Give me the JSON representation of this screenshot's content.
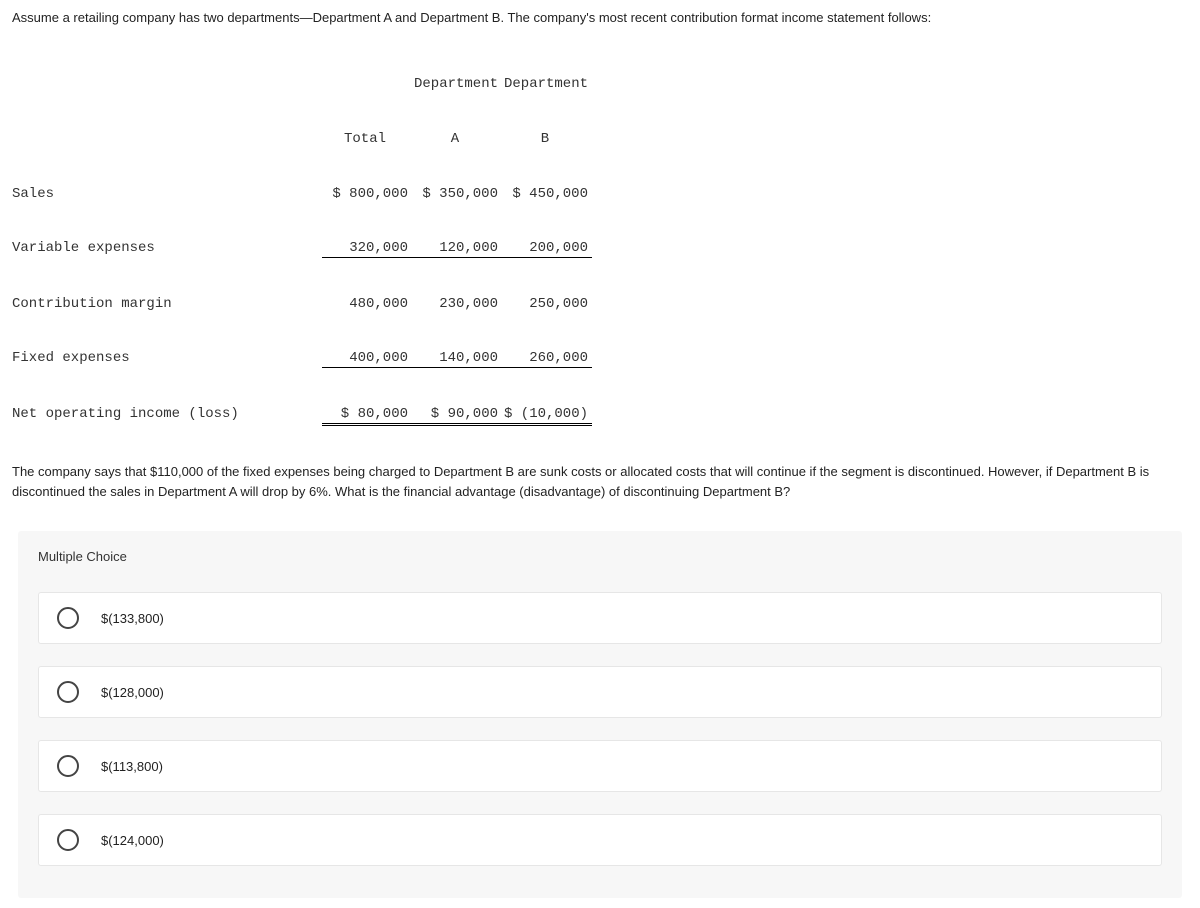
{
  "intro_text": "Assume a retailing company has two departments—Department A and Department B. The company's most recent contribution format income statement follows:",
  "table": {
    "headers": {
      "blank": "",
      "total": "Total",
      "deptA_top": "Department",
      "deptA_sub": "A",
      "deptB_top": "Department",
      "deptB_sub": "B"
    },
    "rows": [
      {
        "label": "Sales",
        "total": "$ 800,000",
        "a": "$ 350,000",
        "b": "$ 450,000"
      },
      {
        "label": "Variable expenses",
        "total": "320,000",
        "a": "120,000",
        "b": "200,000"
      },
      {
        "label": "Contribution margin",
        "total": "480,000",
        "a": "230,000",
        "b": "250,000"
      },
      {
        "label": "Fixed expenses",
        "total": "400,000",
        "a": "140,000",
        "b": "260,000"
      },
      {
        "label": "Net operating income (loss)",
        "total": "$ 80,000",
        "a": "$ 90,000",
        "b": "$ (10,000)"
      }
    ]
  },
  "question_text": "The company says that $110,000 of the fixed expenses being charged to Department B are sunk costs or allocated costs that will continue if the segment is discontinued. However, if Department B is discontinued the sales in Department A will drop by 6%. What is the financial advantage (disadvantage) of discontinuing Department B?",
  "mc": {
    "header": "Multiple Choice",
    "options": [
      "$(133,800)",
      "$(128,000)",
      "$(113,800)",
      "$(124,000)"
    ]
  },
  "colors": {
    "page_bg": "#ffffff",
    "mc_bg": "#f7f7f7",
    "option_bg": "#ffffff",
    "border": "#e6e6e6",
    "text": "#333333",
    "radio_border": "#444444"
  }
}
